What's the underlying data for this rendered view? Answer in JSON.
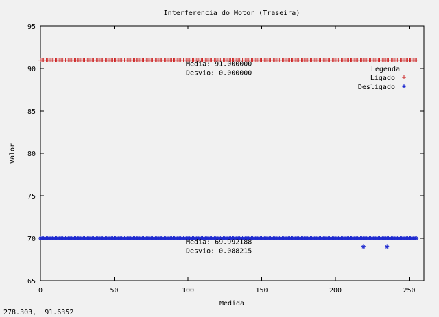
{
  "window": {
    "coordinate_readout": "278.303,  91.6352"
  },
  "chart_data": {
    "type": "scatter",
    "title": "Interferencia do Motor (Traseira)",
    "xlabel": "Medida",
    "ylabel": "Valor",
    "xlim": [
      0,
      260
    ],
    "ylim": [
      65,
      95
    ],
    "xticks": [
      0,
      50,
      100,
      150,
      200,
      250
    ],
    "yticks": [
      65,
      70,
      75,
      80,
      85,
      90,
      95
    ],
    "grid": false,
    "legend_title": "Legenda",
    "legend_position": "top-right",
    "series": [
      {
        "name": "Ligado",
        "marker": "+",
        "color": "#cc2222",
        "x_start": 0,
        "x_end": 255,
        "value": 91.0,
        "outliers": []
      },
      {
        "name": "Desligado",
        "marker": "*",
        "color": "#1f2bd0",
        "x_start": 0,
        "x_end": 255,
        "value": 70.0,
        "outliers": [
          {
            "x": 219,
            "y": 69
          },
          {
            "x": 235,
            "y": 69
          }
        ]
      }
    ],
    "annotations": [
      {
        "lines": [
          "Media: 91.000000",
          "Desvio: 0.000000"
        ],
        "x": 100,
        "y": 90.7
      },
      {
        "lines": [
          "Media: 69.992188",
          "Desvio: 0.088215"
        ],
        "x": 100,
        "y": 69.7
      }
    ]
  }
}
